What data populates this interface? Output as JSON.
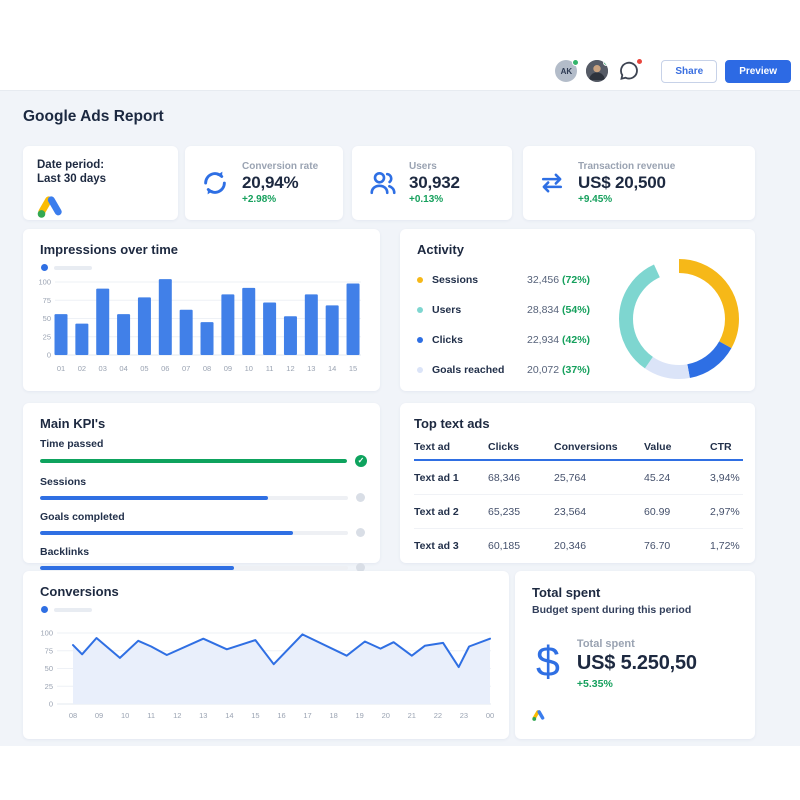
{
  "topbar": {
    "avatar_initials": "AK",
    "share_label": "Share",
    "preview_label": "Preview"
  },
  "page_title": "Google Ads Report",
  "kpis": {
    "date_period": {
      "label": "Date period:",
      "value": "Last 30 days"
    },
    "conversion_rate": {
      "label": "Conversion rate",
      "value": "20,94%",
      "delta": "+2.98%"
    },
    "users": {
      "label": "Users",
      "value": "30,932",
      "delta": "+0.13%"
    },
    "transaction_revenue": {
      "label": "Transaction revenue",
      "value": "US$ 20,500",
      "delta": "+9.45%"
    }
  },
  "impressions": {
    "title": "Impressions over time"
  },
  "activity": {
    "title": "Activity",
    "items": [
      {
        "label": "Sessions",
        "value": "32,456",
        "percent": "(72%)",
        "color": "#f6b818"
      },
      {
        "label": "Users",
        "value": "28,834",
        "percent": "(54%)",
        "color": "#7ed6d0"
      },
      {
        "label": "Clicks",
        "value": "22,934",
        "percent": "(42%)",
        "color": "#2e6fe4"
      },
      {
        "label": "Goals reached",
        "value": "20,072",
        "percent": "(37%)",
        "color": "#dbe4f8"
      }
    ]
  },
  "main_kpis": {
    "title": "Main KPI's",
    "items": [
      {
        "label": "Time passed",
        "percent": 100,
        "complete": true
      },
      {
        "label": "Sessions",
        "percent": 74,
        "complete": false
      },
      {
        "label": "Goals completed",
        "percent": 82,
        "complete": false
      },
      {
        "label": "Backlinks",
        "percent": 63,
        "complete": false
      }
    ]
  },
  "top_text_ads": {
    "title": "Top text ads",
    "columns": [
      "Text ad",
      "Clicks",
      "Conversions",
      "Value",
      "CTR"
    ],
    "rows": [
      {
        "name": "Text ad 1",
        "clicks": "68,346",
        "conversions": "25,764",
        "value": "45.24",
        "ctr": "3,94%"
      },
      {
        "name": "Text ad 2",
        "clicks": "65,235",
        "conversions": "23,564",
        "value": "60.99",
        "ctr": "2,97%"
      },
      {
        "name": "Text ad 3",
        "clicks": "60,185",
        "conversions": "20,346",
        "value": "76.70",
        "ctr": "1,72%"
      }
    ]
  },
  "conversions": {
    "title": "Conversions"
  },
  "total_spent": {
    "title": "Total spent",
    "subtitle": "Budget spent during this period",
    "label": "Total spent",
    "value": "US$ 5.250,50",
    "delta": "+5.35%"
  },
  "colors": {
    "accent_blue": "#2e6fe4",
    "bar_blue": "#4180e8",
    "positive_green": "#16a05d",
    "progress_green": "#0ea35e",
    "background": "#f1f4f9"
  },
  "chart_data": [
    {
      "id": "impressions",
      "type": "bar",
      "title": "Impressions over time",
      "categories": [
        "01",
        "02",
        "03",
        "04",
        "05",
        "06",
        "07",
        "08",
        "09",
        "10",
        "11",
        "12",
        "13",
        "14",
        "15"
      ],
      "values": [
        56,
        43,
        91,
        56,
        79,
        104,
        62,
        45,
        83,
        92,
        72,
        53,
        83,
        68,
        98
      ],
      "xlabel": "",
      "ylabel": "",
      "ylim": [
        0,
        110
      ],
      "yticks": [
        0,
        25,
        50,
        75,
        100
      ],
      "grid": true,
      "bar_color": "#4180e8"
    },
    {
      "id": "activity_donut",
      "type": "pie",
      "donut": true,
      "start_angle_deg": -25,
      "segments": [
        {
          "label": "Sessions",
          "color": "#f6b818",
          "fraction": 0.4
        },
        {
          "label": "Clicks",
          "color": "#2e6fe4",
          "fraction": 0.14
        },
        {
          "label": "Goals reached",
          "color": "#dbe4f8",
          "fraction": 0.125
        },
        {
          "label": "Users",
          "color": "#7ed6d0",
          "fraction": 0.335
        }
      ]
    },
    {
      "id": "conversions",
      "type": "line",
      "title": "Conversions",
      "x_ticks": [
        "08",
        "09",
        "10",
        "11",
        "12",
        "13",
        "14",
        "15",
        "16",
        "17",
        "18",
        "19",
        "20",
        "21",
        "22",
        "23",
        "00"
      ],
      "x_range": [
        0,
        16
      ],
      "points": [
        [
          0,
          83
        ],
        [
          0.35,
          70
        ],
        [
          0.9,
          93
        ],
        [
          1.8,
          65
        ],
        [
          2.5,
          89
        ],
        [
          3.0,
          81
        ],
        [
          3.6,
          69
        ],
        [
          5.0,
          92
        ],
        [
          5.9,
          77
        ],
        [
          7.0,
          90
        ],
        [
          7.7,
          56
        ],
        [
          8.8,
          98
        ],
        [
          10.5,
          68
        ],
        [
          11.2,
          88
        ],
        [
          11.8,
          78
        ],
        [
          12.3,
          87
        ],
        [
          13.0,
          68
        ],
        [
          13.5,
          82
        ],
        [
          14.2,
          86
        ],
        [
          14.8,
          52
        ],
        [
          15.2,
          81
        ],
        [
          16,
          92
        ]
      ],
      "ylim": [
        0,
        110
      ],
      "yticks": [
        0,
        25,
        50,
        75,
        100
      ],
      "grid": true,
      "line_color": "#2f6fe3",
      "area_color": "#e9effb"
    }
  ]
}
